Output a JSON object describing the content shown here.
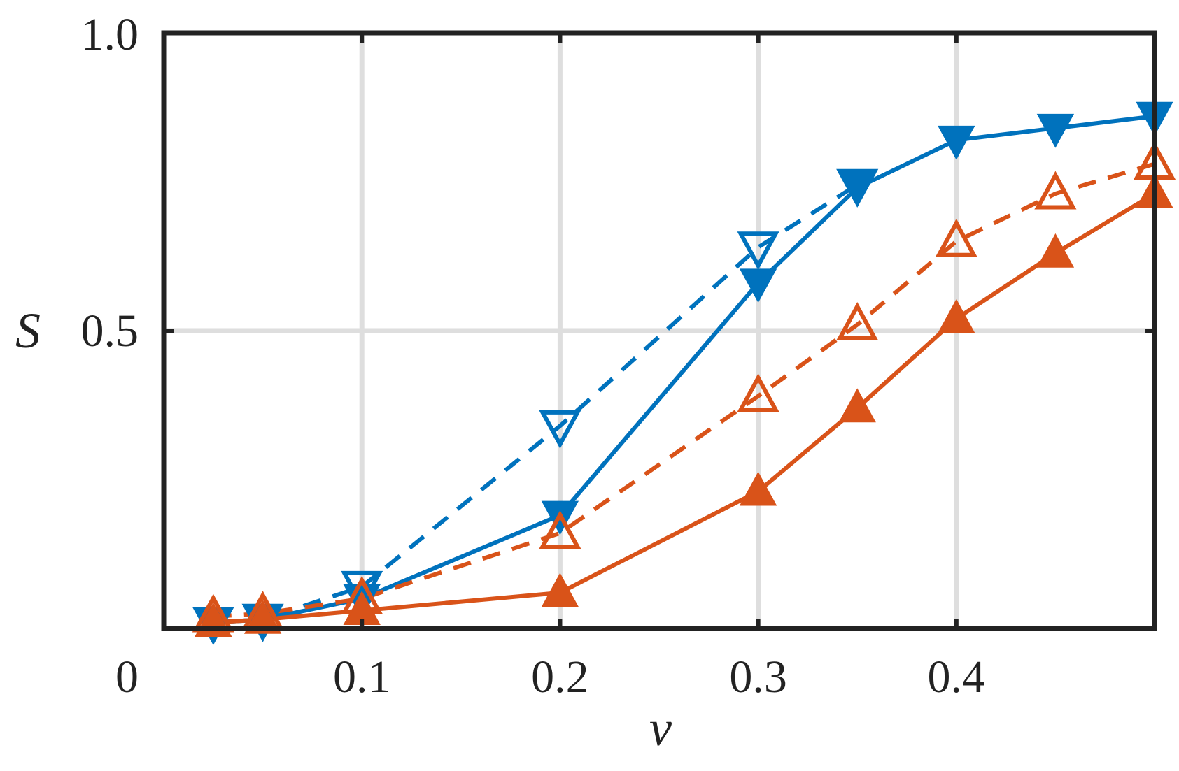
{
  "chart_data": {
    "type": "line",
    "title": "",
    "xlabel": "ν",
    "ylabel": "S",
    "xlim": [
      0,
      0.5
    ],
    "ylim": [
      0,
      1.0
    ],
    "x_ticks": [
      {
        "value": 0,
        "label": "0"
      },
      {
        "value": 0.1,
        "label": "0.1"
      },
      {
        "value": 0.2,
        "label": "0.2"
      },
      {
        "value": 0.3,
        "label": "0.3"
      },
      {
        "value": 0.4,
        "label": "0.4"
      }
    ],
    "y_ticks": [
      {
        "value": 0,
        "label": "0"
      },
      {
        "value": 0.5,
        "label": "0.5"
      },
      {
        "value": 1.0,
        "label": "1.0"
      }
    ],
    "grid": true,
    "legend": "none",
    "series": [
      {
        "color": "#0072BD",
        "line": "dashed",
        "marker": "triangle-down",
        "filled": false,
        "x": [
          0.025,
          0.05,
          0.1,
          0.2,
          0.3,
          0.35
        ],
        "y": [
          0.01,
          0.015,
          0.07,
          0.34,
          0.64,
          0.745
        ]
      },
      {
        "color": "#0072BD",
        "line": "solid",
        "marker": "triangle-down",
        "filled": true,
        "x": [
          0.025,
          0.05,
          0.1,
          0.2,
          0.3,
          0.35,
          0.4,
          0.45,
          0.5
        ],
        "y": [
          0.01,
          0.015,
          0.05,
          0.19,
          0.58,
          0.74,
          0.82,
          0.84,
          0.86
        ]
      },
      {
        "color": "#D95319",
        "line": "dashed",
        "marker": "triangle-up",
        "filled": false,
        "x": [
          0.025,
          0.05,
          0.1,
          0.2,
          0.3,
          0.35,
          0.4,
          0.45,
          0.5
        ],
        "y": [
          0.02,
          0.025,
          0.05,
          0.16,
          0.39,
          0.51,
          0.65,
          0.73,
          0.78
        ]
      },
      {
        "color": "#D95319",
        "line": "solid",
        "marker": "triangle-up",
        "filled": true,
        "x": [
          0.025,
          0.05,
          0.1,
          0.2,
          0.3,
          0.35,
          0.4,
          0.45,
          0.5
        ],
        "y": [
          0.01,
          0.015,
          0.03,
          0.06,
          0.23,
          0.37,
          0.52,
          0.63,
          0.73
        ]
      }
    ]
  }
}
